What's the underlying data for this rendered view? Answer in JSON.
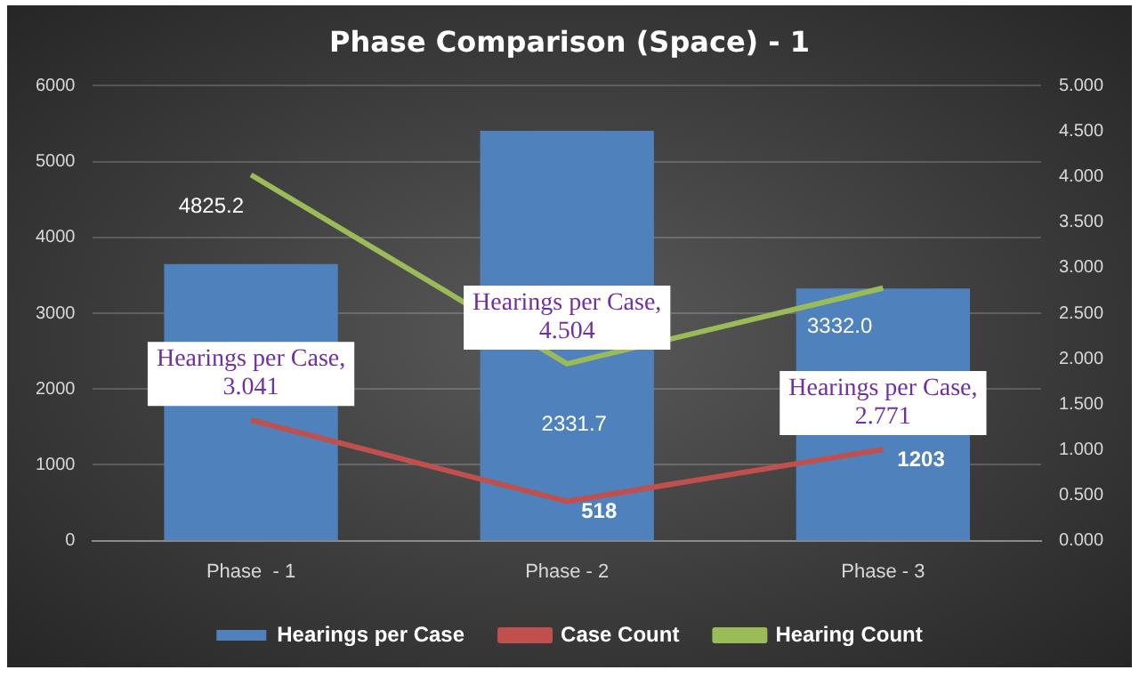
{
  "chart_data": {
    "type": "bar",
    "title": "Phase Comparison (Space) - 1",
    "categories": [
      "Phase  - 1",
      "Phase - 2",
      "Phase - 3"
    ],
    "series": [
      {
        "name": "Hearings per Case",
        "axis": "y2",
        "color": "#4f81bd",
        "values": [
          3.041,
          4.504,
          2.771
        ],
        "value_labels": [
          "Hearings per Case, 3.041",
          "Hearings per Case, 4.504",
          "Hearings per Case, 2.771"
        ]
      },
      {
        "name": "Case Count",
        "type": "line",
        "color": "#c0504d",
        "values": [
          1590,
          518,
          1203
        ],
        "value_labels": [
          null,
          "518",
          "1203"
        ]
      },
      {
        "name": "Hearing Count",
        "type": "line",
        "color": "#9bbb59",
        "values": [
          4825.2,
          2331.7,
          3332.0
        ],
        "value_labels": [
          "4825.2",
          "2331.7",
          "3332.0"
        ]
      }
    ],
    "ylim": [
      0,
      6000
    ],
    "yticks": [
      0,
      1000,
      2000,
      3000,
      4000,
      5000,
      6000
    ],
    "y2lim": [
      0,
      5
    ],
    "y2ticks": [
      {
        "value": 0,
        "label": "0.000"
      },
      {
        "value": 0.5,
        "label": "0.500"
      },
      {
        "value": 1,
        "label": "1.000"
      },
      {
        "value": 1.5,
        "label": "1.500"
      },
      {
        "value": 2,
        "label": "2.000"
      },
      {
        "value": 2.5,
        "label": "2.500"
      },
      {
        "value": 3,
        "label": "3.000"
      },
      {
        "value": 3.5,
        "label": "3.500"
      },
      {
        "value": 4,
        "label": "4.000"
      },
      {
        "value": 4.5,
        "label": "4.500"
      },
      {
        "value": 5,
        "label": "5.000"
      }
    ],
    "grid": "y",
    "legend": "bottom",
    "marker": "none",
    "line_style": "solid"
  }
}
